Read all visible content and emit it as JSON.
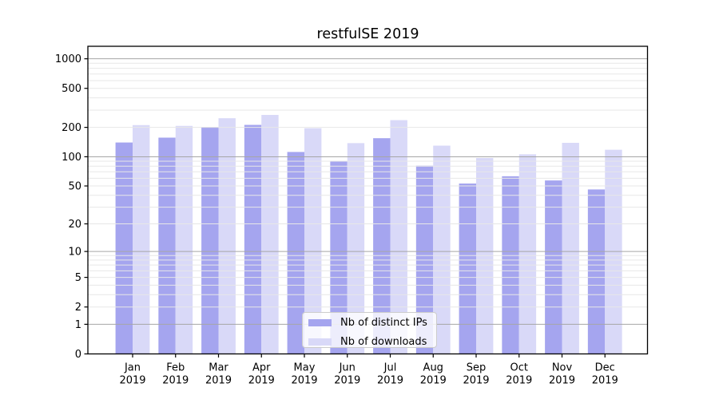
{
  "title": "restfulSE 2019",
  "chart_data": {
    "type": "bar",
    "title": "restfulSE 2019",
    "categories": [
      "Jan 2019",
      "Feb 2019",
      "Mar 2019",
      "Apr 2019",
      "May 2019",
      "Jun 2019",
      "Jul 2019",
      "Aug 2019",
      "Sep 2019",
      "Oct 2019",
      "Nov 2019",
      "Dec 2019"
    ],
    "series": [
      {
        "name": "Nb of distinct IPs",
        "color": "#a5a5ef",
        "values": [
          140,
          157,
          202,
          212,
          112,
          90,
          155,
          81,
          53,
          63,
          57,
          46
        ]
      },
      {
        "name": "Nb of downloads",
        "color": "#d9d9f8",
        "values": [
          211,
          207,
          248,
          268,
          196,
          138,
          237,
          130,
          97,
          106,
          139,
          118
        ]
      }
    ],
    "y_scale": "log1p",
    "y_ticks": [
      1000,
      500,
      200,
      100,
      50,
      20,
      10,
      5,
      2,
      1,
      0
    ],
    "minor_grid_values": [
      2,
      3,
      4,
      5,
      6,
      7,
      8,
      9,
      20,
      30,
      40,
      50,
      60,
      70,
      80,
      90,
      200,
      300,
      400,
      500,
      600,
      700,
      800,
      900
    ],
    "major_grid_values": [
      1,
      10,
      100,
      1000
    ],
    "ylim": [
      0,
      1340
    ],
    "xlabel": "",
    "ylabel": "",
    "grid": "on",
    "legend_position": "lower-center",
    "colors": {
      "major_grid": "#a6a6a6",
      "minor_grid": "#e7e7e7",
      "axis": "#000000",
      "text": "#000000",
      "legend_border": "#cccccc",
      "background": "#ffffff"
    }
  }
}
